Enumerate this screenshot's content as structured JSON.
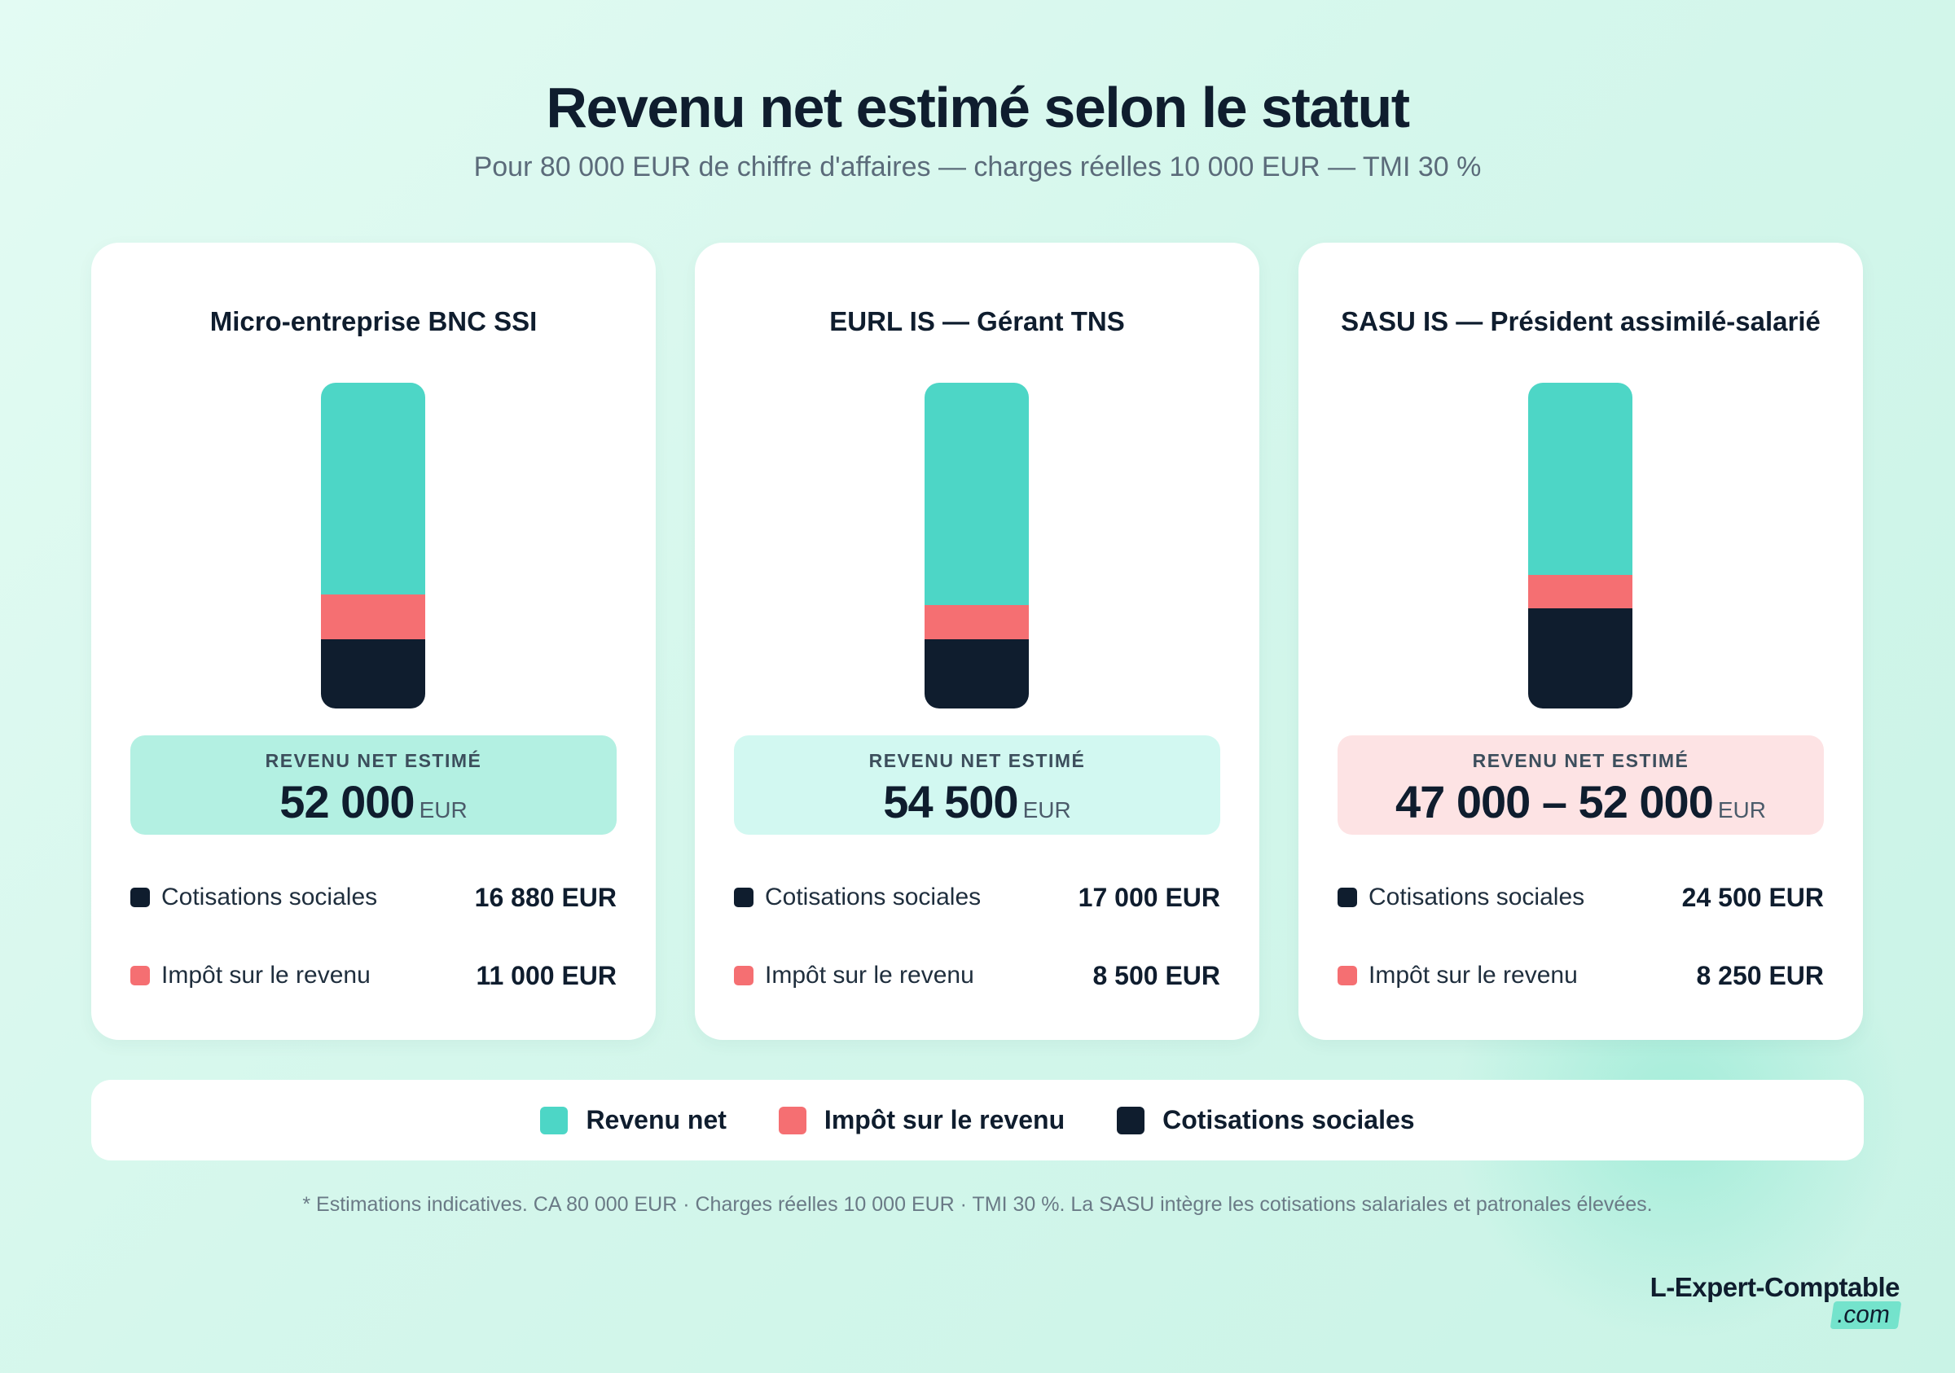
{
  "title": "Revenu net estimé selon le statut",
  "subtitle": "Pour 80 000 EUR de chiffre d'affaires — charges réelles 10 000 EUR — TMI 30 %",
  "colors": {
    "revenu_net": "#4dd6c6",
    "impot": "#f56f72",
    "cotisations": "#0f1d2e",
    "net_box_green": "#b3f0e2",
    "net_box_mint": "#d2f8f1",
    "net_box_pink": "#fde3e4"
  },
  "cards": [
    {
      "title": "Micro-entreprise BNC SSI",
      "net_label": "REVENU NET ESTIMÉ",
      "net_value": "52 000",
      "net_unit": "EUR",
      "cotisations_label": "Cotisations sociales",
      "cotisations_value": "16 880 EUR",
      "impot_label": "Impôt sur le revenu",
      "impot_value": "11 000 EUR"
    },
    {
      "title": "EURL IS — Gérant TNS",
      "net_label": "REVENU NET ESTIMÉ",
      "net_value": "54 500",
      "net_unit": "EUR",
      "cotisations_label": "Cotisations sociales",
      "cotisations_value": "17 000 EUR",
      "impot_label": "Impôt sur le revenu",
      "impot_value": "8 500 EUR"
    },
    {
      "title": "SASU IS — Président assimilé-salarié",
      "net_label": "REVENU NET ESTIMÉ",
      "net_value": "47 000 – 52 000",
      "net_unit": "EUR",
      "cotisations_label": "Cotisations sociales",
      "cotisations_value": "24 500 EUR",
      "impot_label": "Impôt sur le revenu",
      "impot_value": "8 250 EUR"
    }
  ],
  "legend": {
    "revenu_net": "Revenu net",
    "impot": "Impôt sur le revenu",
    "cotisations": "Cotisations sociales"
  },
  "footnote": "* Estimations indicatives. CA 80 000 EUR · Charges réelles 10 000 EUR · TMI 30 %. La SASU intègre les cotisations salariales et patronales élevées.",
  "brand": {
    "name": "L-Expert-Comptable",
    "suffix": ".com"
  },
  "chart_data": {
    "type": "bar",
    "stacked": true,
    "categories": [
      "Micro-entreprise BNC SSI",
      "EURL IS — Gérant TNS",
      "SASU IS — Président assimilé-salarié"
    ],
    "series": [
      {
        "name": "Revenu net",
        "values": [
          52000,
          54500,
          47000
        ]
      },
      {
        "name": "Impôt sur le revenu",
        "values": [
          11000,
          8500,
          8250
        ]
      },
      {
        "name": "Cotisations sociales",
        "values": [
          16880,
          17000,
          24500
        ]
      }
    ],
    "legend_position": "bottom",
    "grid": false
  }
}
